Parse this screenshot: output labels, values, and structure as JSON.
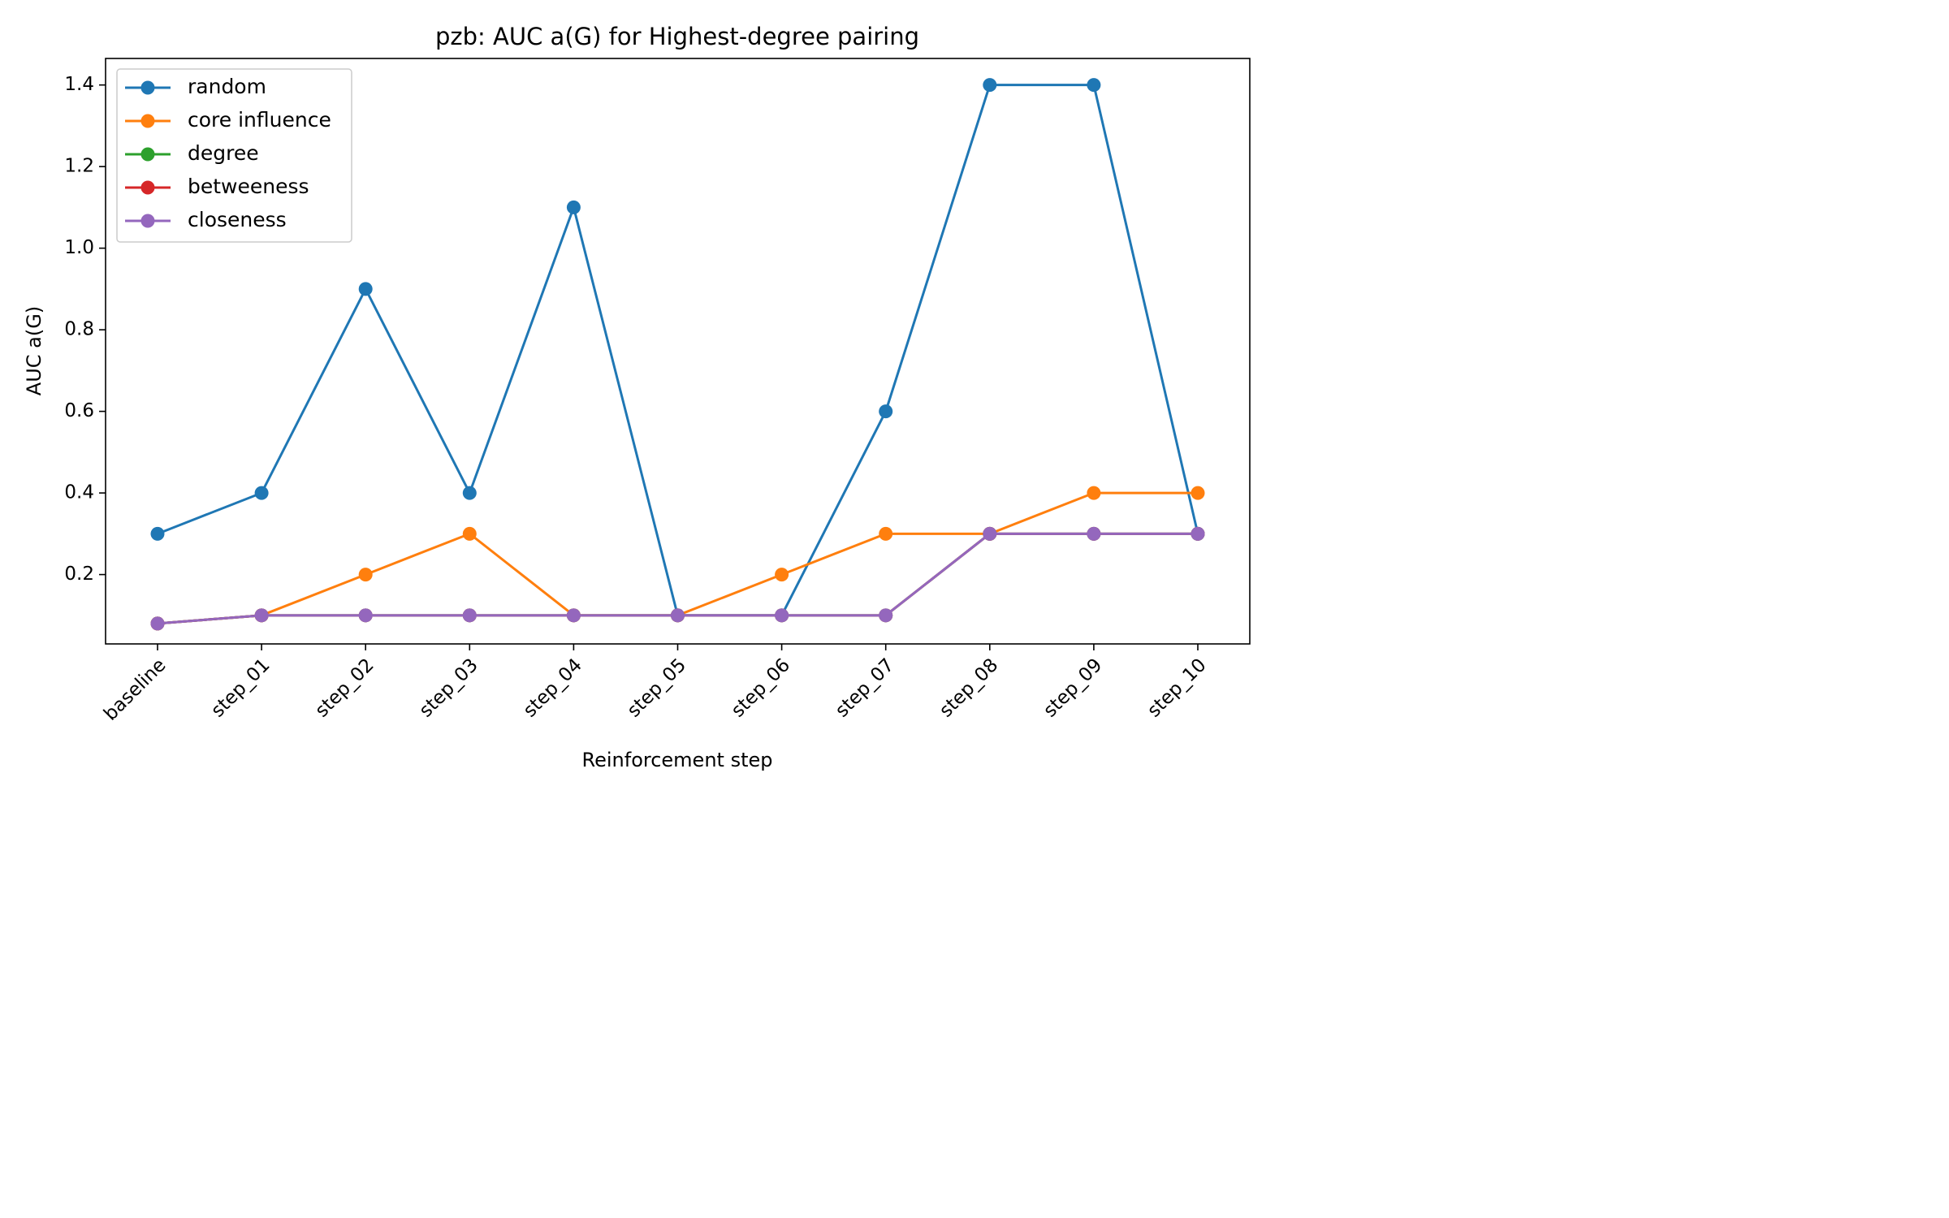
{
  "chart_data": {
    "type": "line",
    "title": "pzb: AUC a(G) for Highest-degree pairing",
    "xlabel": "Reinforcement step",
    "ylabel": "AUC a(G)",
    "categories": [
      "baseline",
      "step_01",
      "step_02",
      "step_03",
      "step_04",
      "step_05",
      "step_06",
      "step_07",
      "step_08",
      "step_09",
      "step_10"
    ],
    "ylim": [
      0.03,
      1.465
    ],
    "yticks": [
      0.2,
      0.4,
      0.6,
      0.8,
      1.0,
      1.2,
      1.4
    ],
    "ytick_labels": [
      "0.2",
      "0.4",
      "0.6",
      "0.8",
      "1.0",
      "1.2",
      "1.4"
    ],
    "grid": false,
    "legend_position": "top-left",
    "series": [
      {
        "name": "random",
        "color": "#1f77b4",
        "values": [
          0.3,
          0.4,
          0.9,
          0.4,
          1.1,
          0.1,
          0.1,
          0.6,
          1.4,
          1.4,
          0.3
        ]
      },
      {
        "name": "core influence",
        "color": "#ff7f0e",
        "values": [
          0.08,
          0.1,
          0.2,
          0.3,
          0.1,
          0.1,
          0.2,
          0.3,
          0.3,
          0.4,
          0.4
        ]
      },
      {
        "name": "degree",
        "color": "#2ca02c",
        "values": [
          0.08,
          0.1,
          0.1,
          0.1,
          0.1,
          0.1,
          0.1,
          0.1,
          0.3,
          0.3,
          0.3
        ]
      },
      {
        "name": "betweeness",
        "color": "#d62728",
        "values": [
          0.08,
          0.1,
          0.1,
          0.1,
          0.1,
          0.1,
          0.1,
          0.1,
          0.3,
          0.3,
          0.3
        ]
      },
      {
        "name": "closeness",
        "color": "#9467bd",
        "values": [
          0.08,
          0.1,
          0.1,
          0.1,
          0.1,
          0.1,
          0.1,
          0.1,
          0.3,
          0.3,
          0.3
        ]
      }
    ]
  }
}
